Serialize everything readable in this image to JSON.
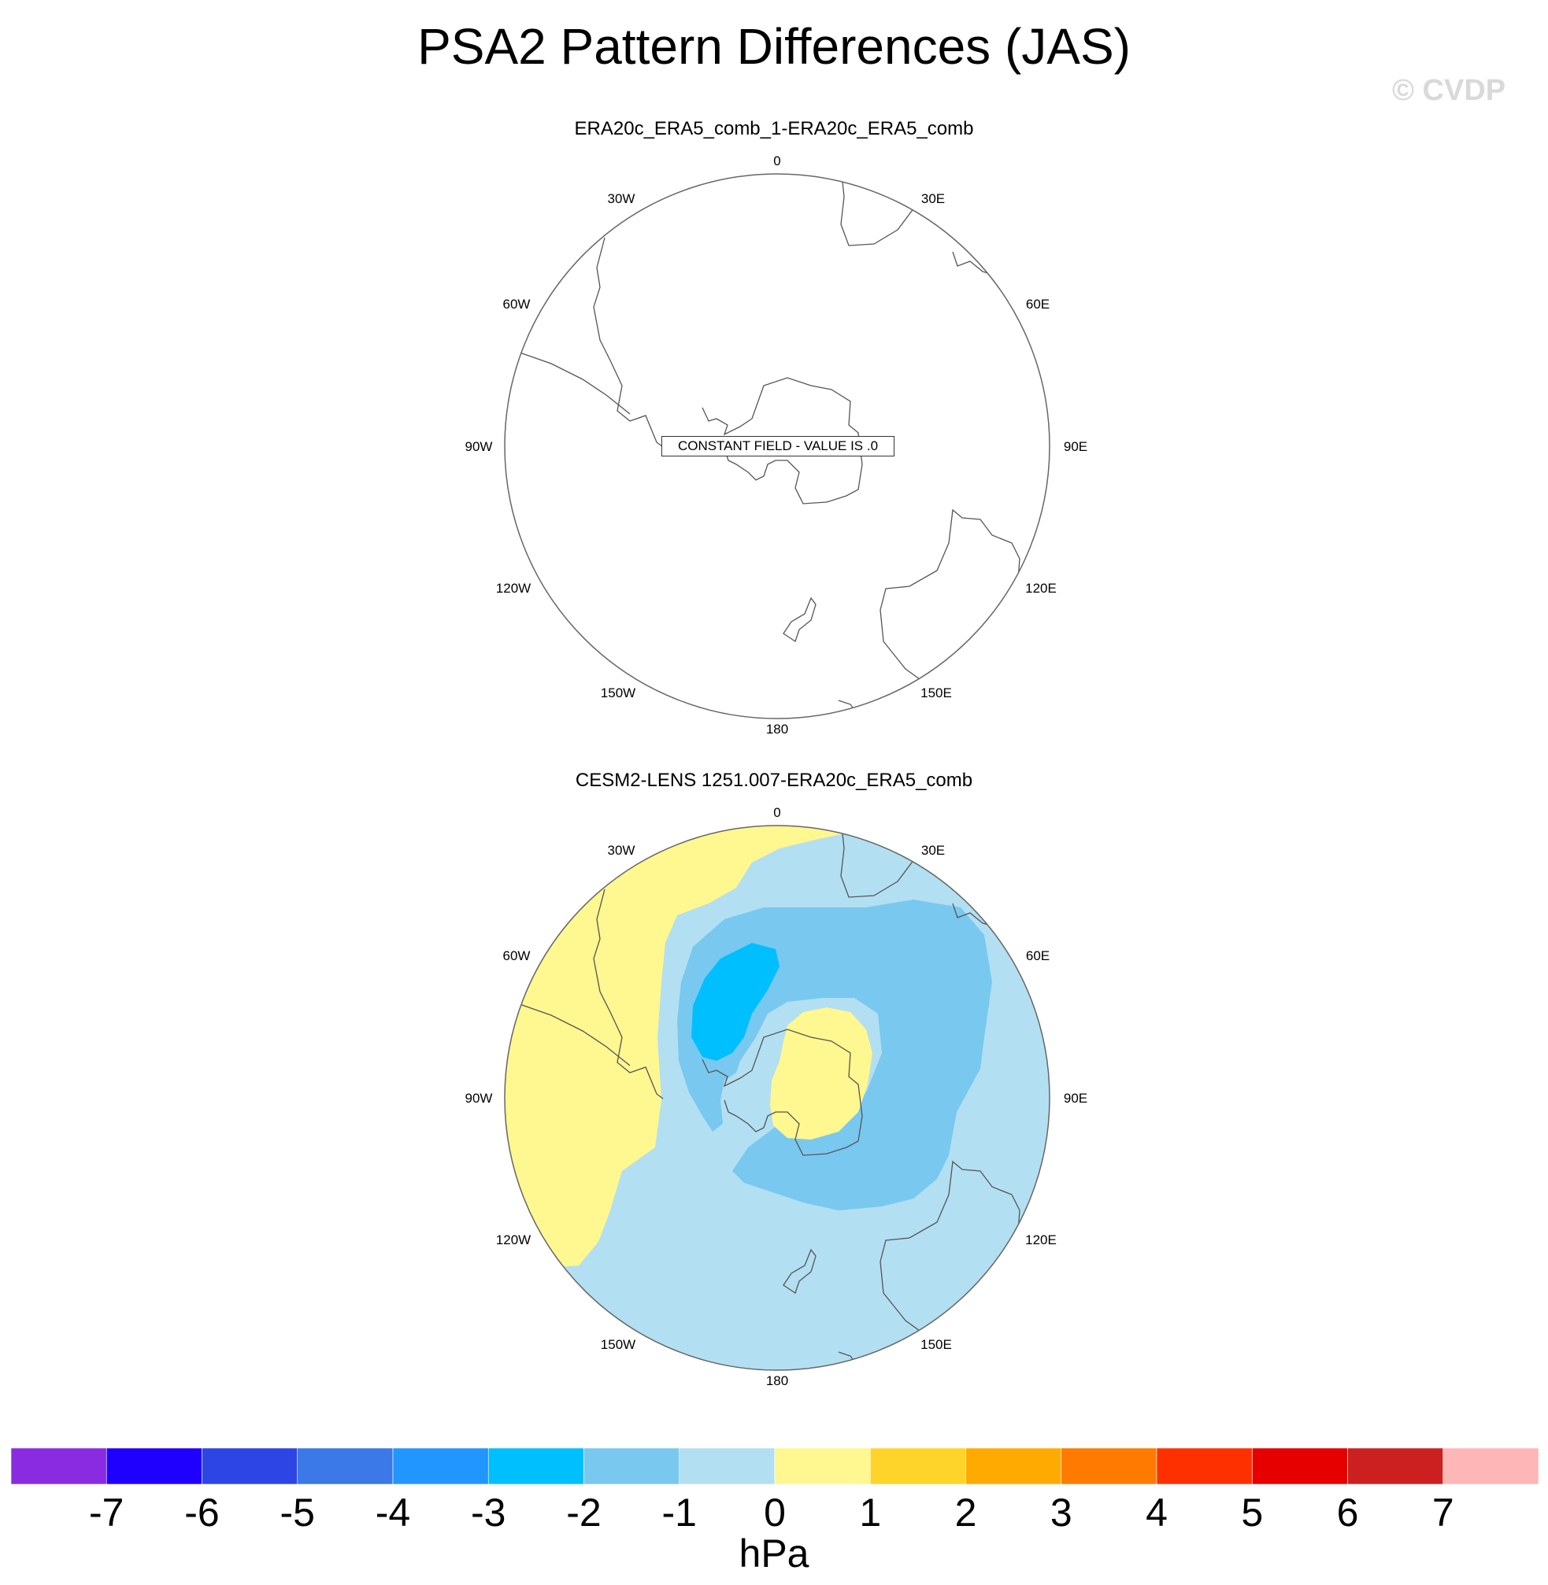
{
  "title": "PSA2 Pattern Differences (JAS)",
  "watermark": "© CVDP",
  "panels": [
    {
      "title": "ERA20c_ERA5_comb_1-ERA20c_ERA5_comb",
      "annotation": "CONSTANT FIELD - VALUE IS .0",
      "longitude_labels": [
        "0",
        "30E",
        "60E",
        "90E",
        "120E",
        "150E",
        "180",
        "150W",
        "120W",
        "90W",
        "60W",
        "30W"
      ]
    },
    {
      "title": "CESM2-LENS 1251.007-ERA20c_ERA5_comb",
      "longitude_labels": [
        "0",
        "30E",
        "60E",
        "90E",
        "120E",
        "150E",
        "180",
        "150W",
        "120W",
        "90W",
        "60W",
        "30W"
      ]
    }
  ],
  "chart_data": {
    "type": "heatmap",
    "projection": "south-polar-stereographic",
    "title": "PSA2 Pattern Differences (JAS)",
    "units": "hPa",
    "levels": [
      -7,
      -6,
      -5,
      -4,
      -3,
      -2,
      -1,
      0,
      1,
      2,
      3,
      4,
      5,
      6,
      7
    ],
    "colorbar_colors": [
      "#8a2be2",
      "#1f00ff",
      "#2e45e6",
      "#3b78e8",
      "#2196ff",
      "#00bfff",
      "#79c8f0",
      "#b3dff2",
      "#fff790",
      "#ffd42a",
      "#ffaa00",
      "#ff7a00",
      "#ff3000",
      "#e60000",
      "#cc2020",
      "#ffb6b6"
    ],
    "tick_labels": [
      "-7",
      "-6",
      "-5",
      "-4",
      "-3",
      "-2",
      "-1",
      "0",
      "1",
      "2",
      "3",
      "4",
      "5",
      "6",
      "7"
    ],
    "panels": [
      {
        "name": "ERA20c_ERA5_comb_1-ERA20c_ERA5_comb",
        "field": "constant",
        "value": 0.0
      },
      {
        "name": "CESM2-LENS 1251.007-ERA20c_ERA5_comb",
        "regions": [
          {
            "range": [
              0,
              1
            ],
            "location": "South Atlantic / South America sector and Antarctic interior"
          },
          {
            "range": [
              -1,
              0
            ],
            "location": "background over most of hemisphere"
          },
          {
            "range": [
              -2,
              -1
            ],
            "location": "ring surrounding Antarctica, Indian Ocean and Australia sector"
          },
          {
            "range": [
              -3,
              -2
            ],
            "location": "Antarctic Peninsula / Drake Passage"
          }
        ]
      }
    ]
  }
}
